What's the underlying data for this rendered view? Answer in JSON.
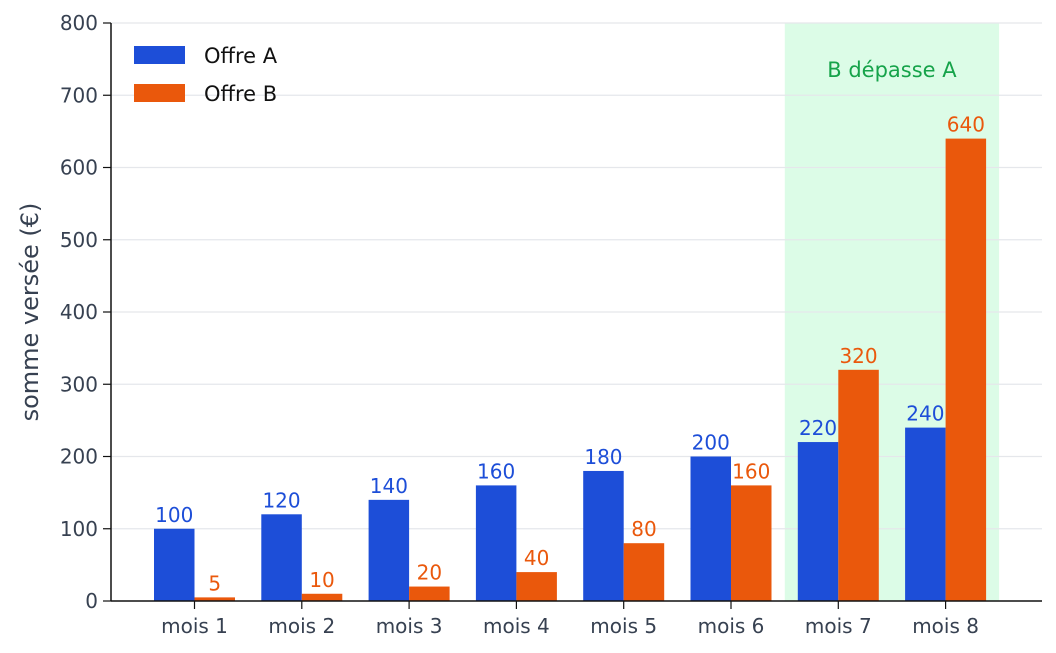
{
  "chart_data": {
    "type": "bar",
    "categories": [
      "mois 1",
      "mois 2",
      "mois 3",
      "mois 4",
      "mois 5",
      "mois 6",
      "mois 7",
      "mois 8"
    ],
    "series": [
      {
        "name": "Offre A",
        "color": "#1d4ed8",
        "values": [
          100,
          120,
          140,
          160,
          180,
          200,
          220,
          240
        ]
      },
      {
        "name": "Offre B",
        "color": "#ea580c",
        "values": [
          5,
          10,
          20,
          40,
          80,
          160,
          320,
          640
        ]
      }
    ],
    "ylabel": "somme versée (€)",
    "xlabel": "",
    "ylim": [
      0,
      800
    ],
    "yticks": [
      0,
      100,
      200,
      300,
      400,
      500,
      600,
      700,
      800
    ],
    "grid": true,
    "legend": "top-left",
    "highlight": {
      "label": "B dépasse A",
      "from_category": "mois 7",
      "to_category": "mois 8",
      "fill": "#dcfce7",
      "text_color": "#16a34a"
    }
  }
}
